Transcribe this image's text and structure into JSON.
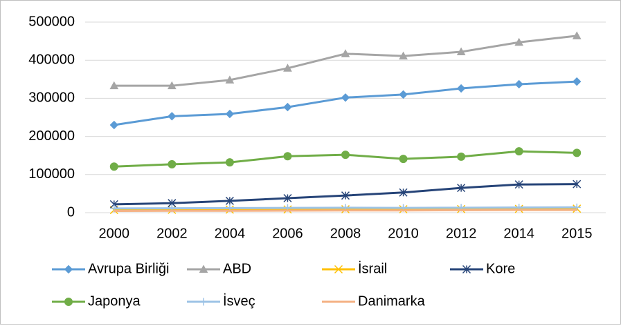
{
  "chart_data": {
    "type": "line",
    "categories": [
      "2000",
      "2002",
      "2004",
      "2006",
      "2008",
      "2010",
      "2012",
      "2014",
      "2015"
    ],
    "series": [
      {
        "name": "Avrupa Birliği",
        "color": "#5b9bd5",
        "marker": "diamond",
        "values": [
          230000,
          253000,
          259000,
          277000,
          302000,
          310000,
          326000,
          337000,
          344000
        ]
      },
      {
        "name": "ABD",
        "color": "#a5a5a5",
        "marker": "triangle",
        "values": [
          333000,
          333000,
          348000,
          379000,
          417000,
          411000,
          422000,
          447000,
          464000
        ]
      },
      {
        "name": "İsrail",
        "color": "#ffc000",
        "marker": "x",
        "values": [
          7000,
          7500,
          8000,
          8500,
          9000,
          9000,
          9500,
          10000,
          10500
        ]
      },
      {
        "name": "Kore",
        "color": "#264478",
        "marker": "asterisk",
        "values": [
          22000,
          25000,
          31000,
          38000,
          45000,
          53000,
          65000,
          74000,
          75000
        ]
      },
      {
        "name": "Japonya",
        "color": "#70ad47",
        "marker": "circle",
        "values": [
          121000,
          127000,
          132000,
          148000,
          152000,
          141000,
          147000,
          161000,
          157000
        ]
      },
      {
        "name": "İsveç",
        "color": "#9dc3e6",
        "marker": "plus",
        "values": [
          11000,
          11500,
          12000,
          12500,
          13000,
          12500,
          13000,
          13500,
          14000
        ]
      },
      {
        "name": "Danimarka",
        "color": "#f4b183",
        "marker": "none",
        "values": [
          4500,
          5000,
          5000,
          5500,
          6000,
          6000,
          6500,
          7000,
          7000
        ]
      }
    ],
    "ylim": [
      0,
      500000
    ],
    "yticks": [
      0,
      100000,
      200000,
      300000,
      400000,
      500000
    ],
    "grid": true
  }
}
